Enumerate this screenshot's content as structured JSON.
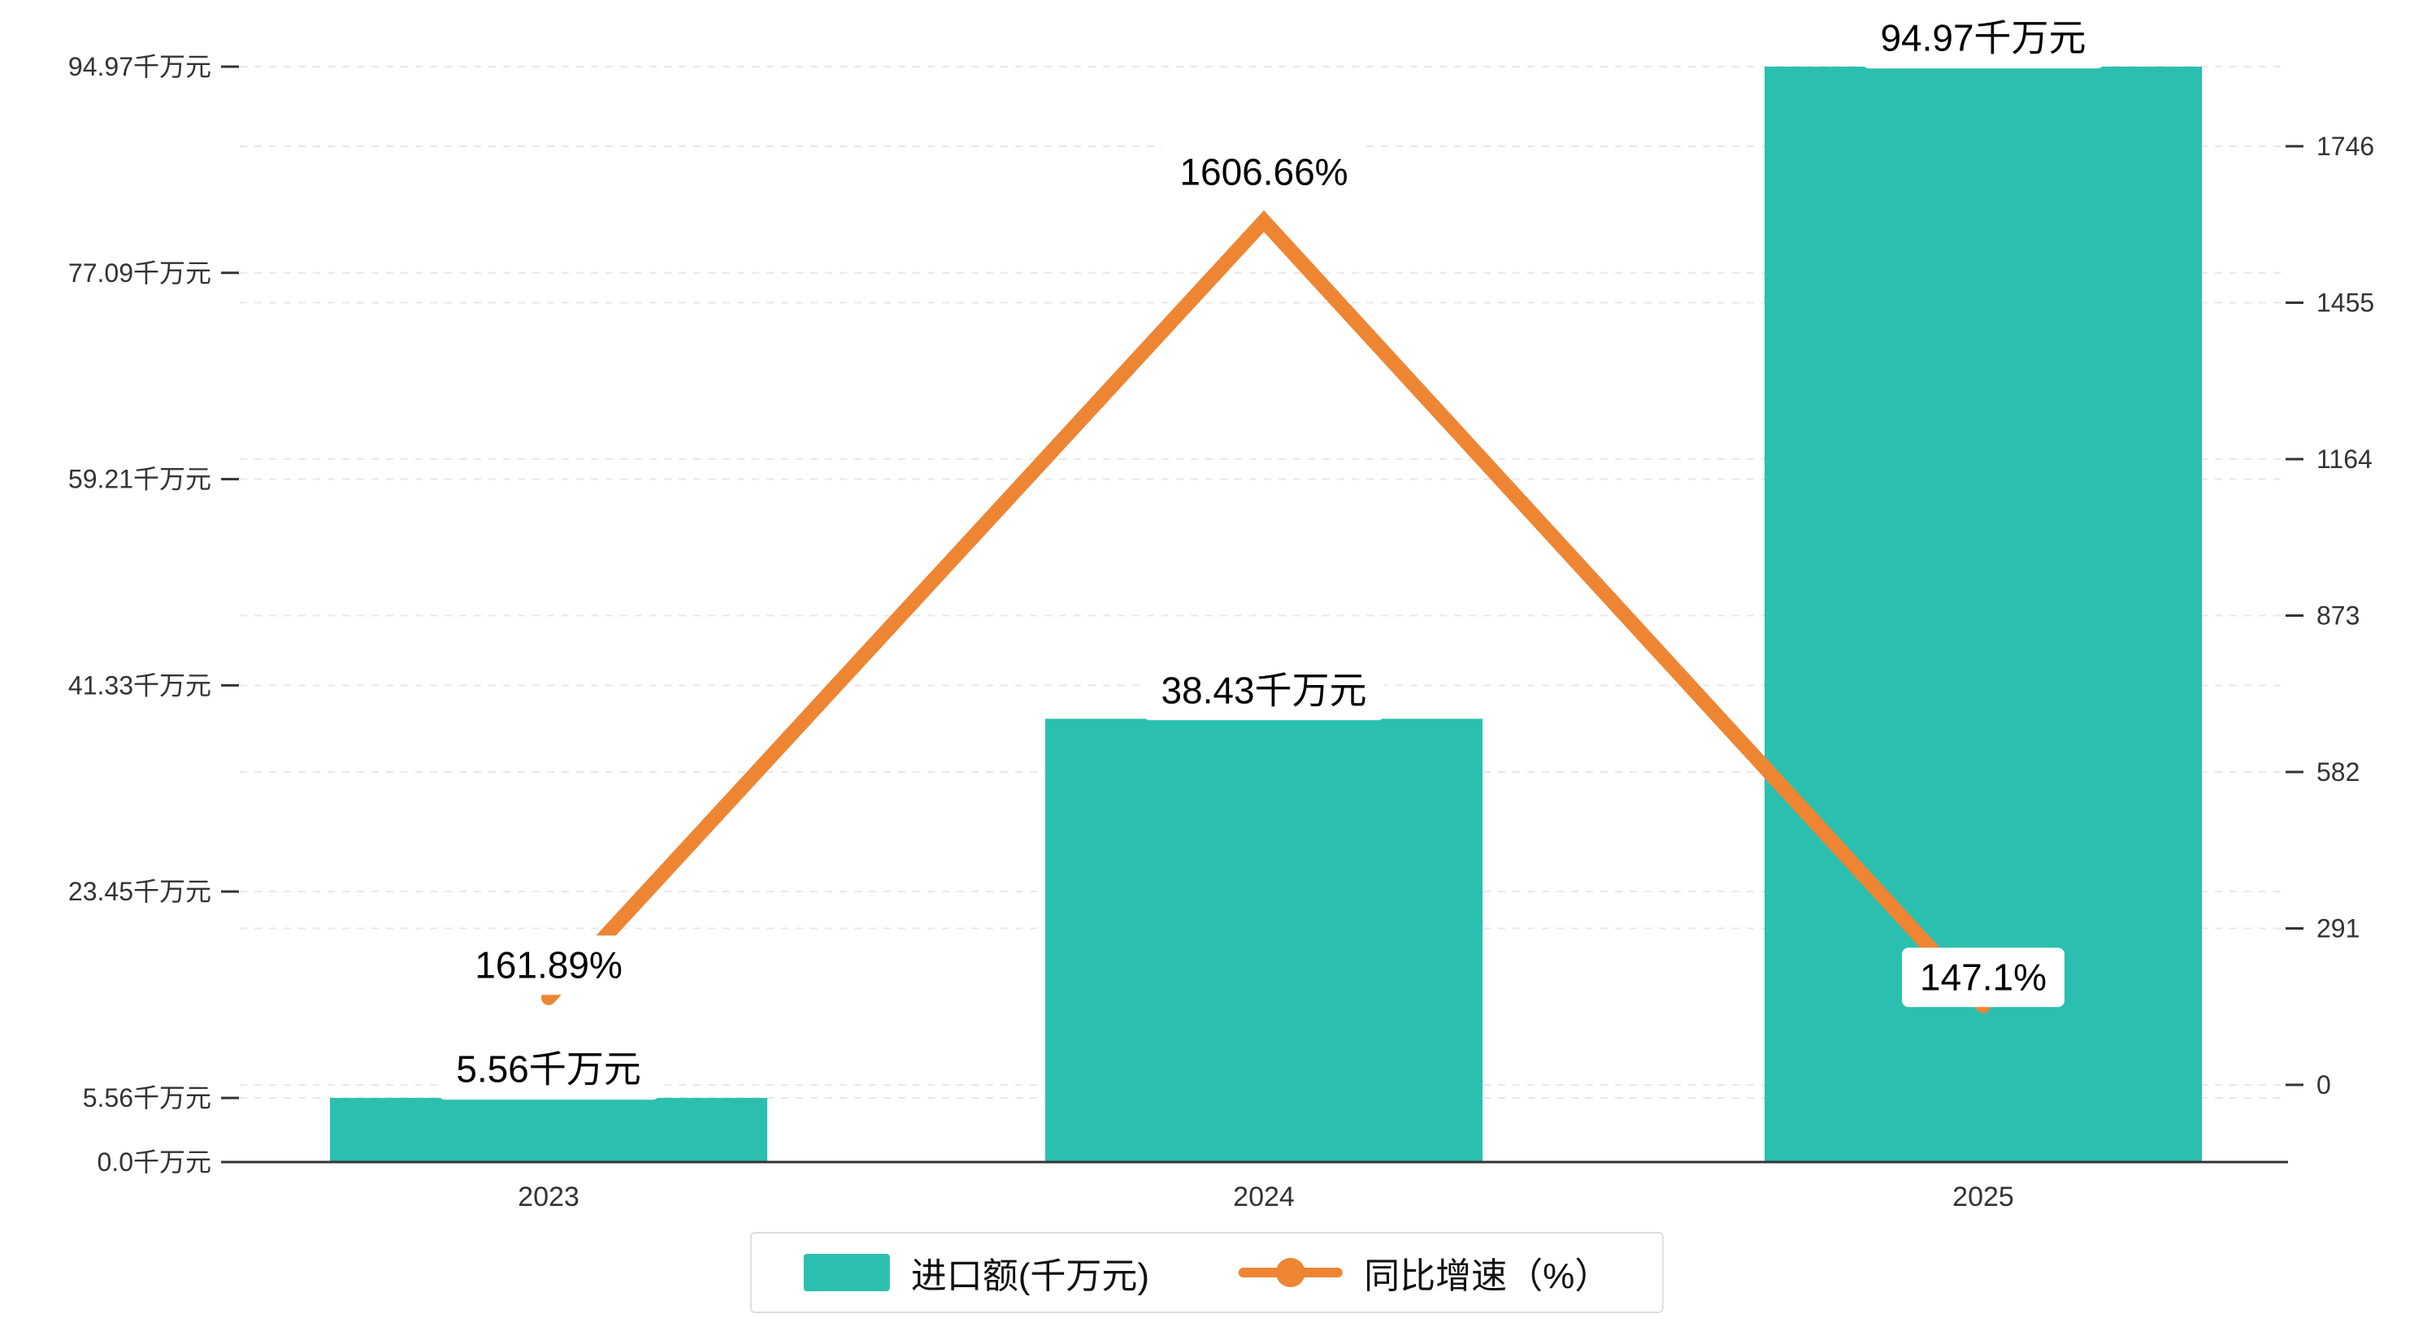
{
  "chart_data": {
    "type": "combo",
    "categories": [
      "2023",
      "2024",
      "2025"
    ],
    "series": [
      {
        "name": "进口额(千万元)",
        "type": "bar",
        "axis": "left",
        "values": [
          5.56,
          38.43,
          94.97
        ],
        "data_labels": [
          "5.56千万元",
          "38.43千万元",
          "94.97千万元"
        ],
        "color": "#2BBFAF"
      },
      {
        "name": "同比增速（%）",
        "type": "line",
        "axis": "right",
        "values": [
          161.89,
          1606.66,
          147.1
        ],
        "data_labels": [
          "161.89%",
          "1606.66%",
          "147.1%"
        ],
        "color": "#EE8533"
      }
    ],
    "left_axis": {
      "ticks": [
        {
          "label": "94.97千万元",
          "value": 94.97
        },
        {
          "label": "77.09千万元",
          "value": 77.09
        },
        {
          "label": "59.21千万元",
          "value": 59.21
        },
        {
          "label": "41.33千万元",
          "value": 41.33
        },
        {
          "label": "23.45千万元",
          "value": 23.45
        },
        {
          "label": "5.56千万元",
          "value": 5.56
        },
        {
          "label": "0.0千万元",
          "value": 0
        }
      ],
      "range": [
        0,
        94.97
      ]
    },
    "right_axis": {
      "ticks": [
        {
          "label": "1746",
          "value": 1746
        },
        {
          "label": "1455",
          "value": 1455
        },
        {
          "label": "1164",
          "value": 1164
        },
        {
          "label": "873",
          "value": 873
        },
        {
          "label": "582",
          "value": 582
        },
        {
          "label": "291",
          "value": 291
        },
        {
          "label": "0",
          "value": 0
        }
      ],
      "range": [
        0,
        1746
      ]
    },
    "grid": true,
    "legend_position": "bottom"
  },
  "colors": {
    "bar": "#2BBFAF",
    "line": "#EE8533",
    "axis": "#333333",
    "grid": "#e8e8e8",
    "text": "#333333",
    "label_bg": "#ffffff"
  }
}
